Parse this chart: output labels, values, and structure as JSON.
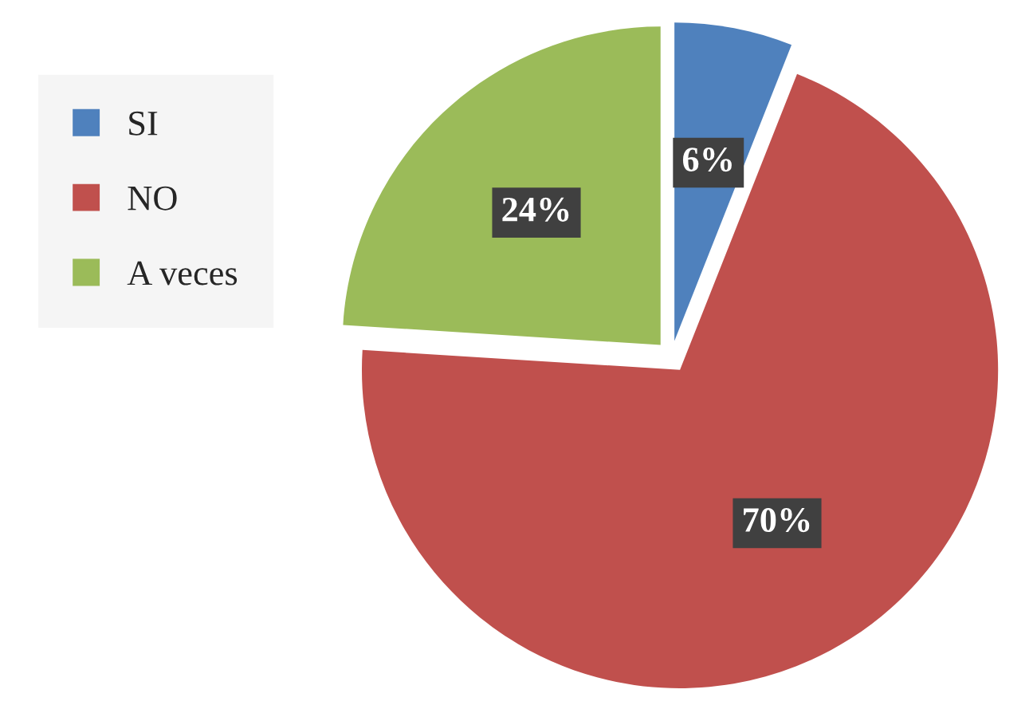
{
  "chart_data": {
    "type": "pie",
    "categories": [
      "SI",
      "NO",
      "A veces"
    ],
    "values": [
      6,
      70,
      24
    ],
    "value_labels": [
      "6%",
      "70%",
      "24%"
    ],
    "colors": [
      "#4f81bd",
      "#c0504d",
      "#9bbb59"
    ],
    "legend": "left"
  }
}
